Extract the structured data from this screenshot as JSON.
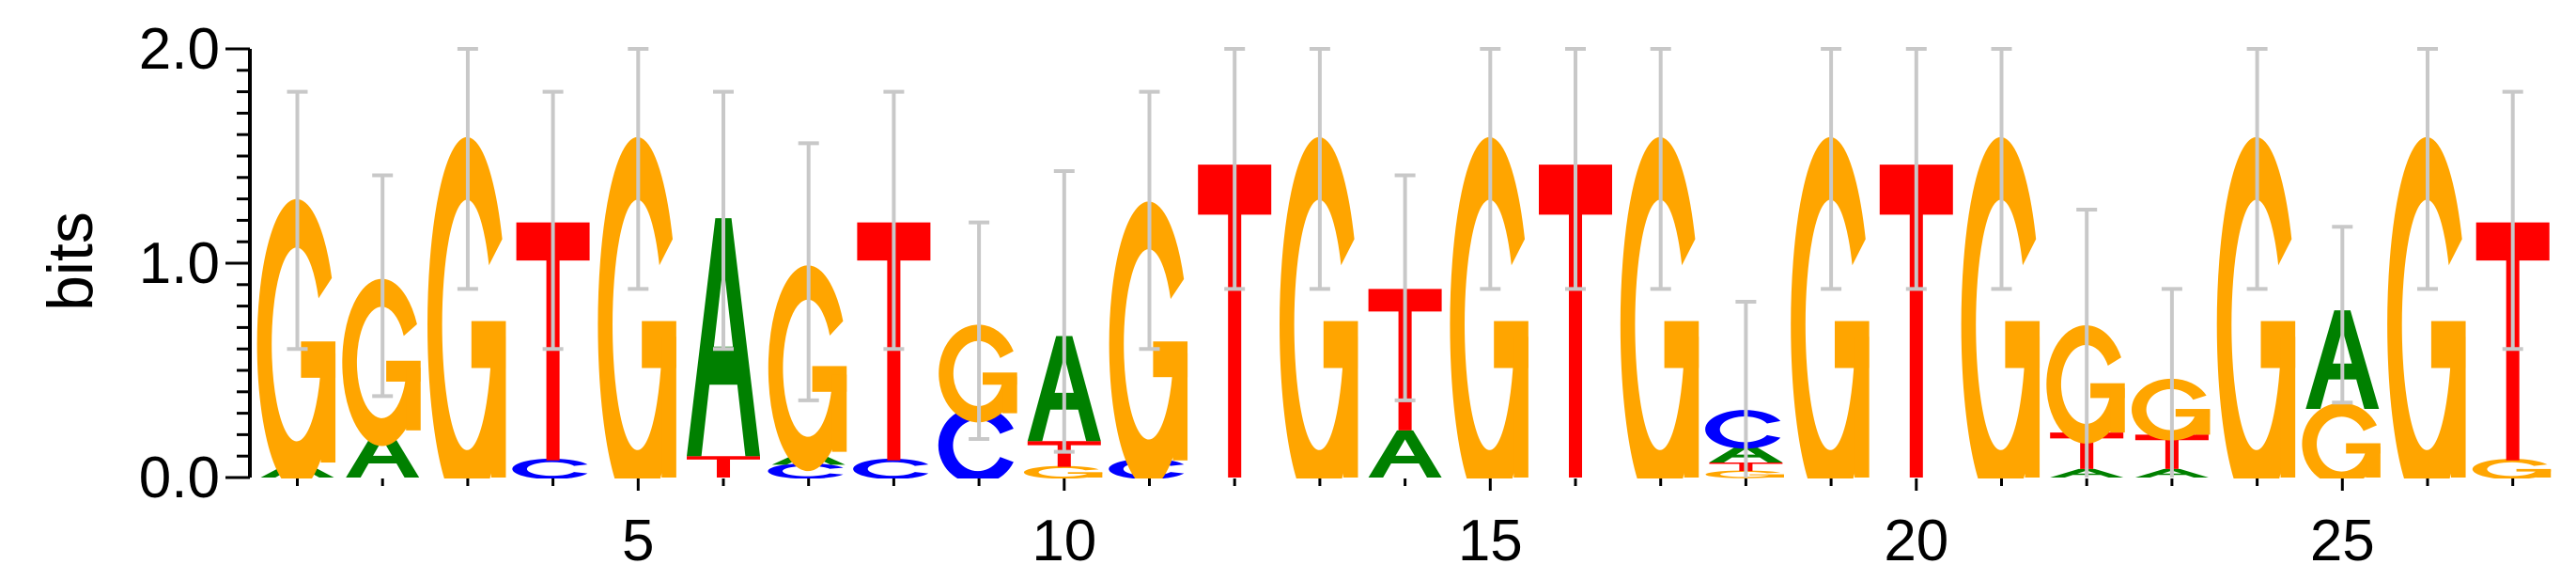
{
  "chart_data": {
    "type": "sequence-logo",
    "ylabel": "bits",
    "ylim": [
      0,
      2.0
    ],
    "y_ticks": [
      "0.0",
      "1.0",
      "2.0"
    ],
    "xlim": [
      0.5,
      27.5
    ],
    "x_ticks": [
      5,
      10,
      15,
      20,
      25
    ],
    "x_tick_labels": [
      "5",
      "10",
      "15",
      "20",
      "25"
    ],
    "colors": {
      "A": "#008000",
      "C": "#0000ff",
      "G": "#ffa500",
      "T": "#ff0000",
      "error_bar": "#c8c8c8"
    },
    "positions": [
      {
        "pos": 1,
        "letters": [
          [
            "A",
            0.07
          ],
          [
            "G",
            1.13
          ]
        ],
        "error": [
          0.6,
          1.8
        ]
      },
      {
        "pos": 2,
        "letters": [
          [
            "A",
            0.22
          ],
          [
            "G",
            0.65
          ]
        ],
        "error": [
          0.38,
          1.41
        ]
      },
      {
        "pos": 3,
        "letters": [
          [
            "G",
            1.46
          ]
        ],
        "error": [
          0.88,
          2.0
        ]
      },
      {
        "pos": 4,
        "letters": [
          [
            "C",
            0.08
          ],
          [
            "T",
            1.11
          ]
        ],
        "error": [
          0.6,
          1.8
        ]
      },
      {
        "pos": 5,
        "letters": [
          [
            "G",
            1.46
          ]
        ],
        "error": [
          0.88,
          2.0
        ]
      },
      {
        "pos": 6,
        "letters": [
          [
            "T",
            0.1
          ],
          [
            "A",
            1.11
          ]
        ],
        "error": [
          0.6,
          1.8
        ]
      },
      {
        "pos": 7,
        "letters": [
          [
            "C",
            0.06
          ],
          [
            "A",
            0.06
          ],
          [
            "G",
            0.8
          ]
        ],
        "error": [
          0.36,
          1.56
        ]
      },
      {
        "pos": 8,
        "letters": [
          [
            "C",
            0.08
          ],
          [
            "T",
            1.11
          ]
        ],
        "error": [
          0.6,
          1.8
        ]
      },
      {
        "pos": 9,
        "letters": [
          [
            "C",
            0.3
          ],
          [
            "G",
            0.38
          ]
        ],
        "error": [
          0.18,
          1.19
        ]
      },
      {
        "pos": 10,
        "letters": [
          [
            "G",
            0.05
          ],
          [
            "T",
            0.12
          ],
          [
            "A",
            0.49
          ]
        ],
        "error": [
          0.12,
          1.43
        ]
      },
      {
        "pos": 11,
        "letters": [
          [
            "C",
            0.08
          ],
          [
            "G",
            1.11
          ]
        ],
        "error": [
          0.6,
          1.8
        ]
      },
      {
        "pos": 12,
        "letters": [
          [
            "T",
            1.46
          ]
        ],
        "error": [
          0.88,
          2.0
        ]
      },
      {
        "pos": 13,
        "letters": [
          [
            "G",
            1.46
          ]
        ],
        "error": [
          0.88,
          2.0
        ]
      },
      {
        "pos": 14,
        "letters": [
          [
            "A",
            0.22
          ],
          [
            "T",
            0.66
          ]
        ],
        "error": [
          0.36,
          1.41
        ]
      },
      {
        "pos": 15,
        "letters": [
          [
            "G",
            1.46
          ]
        ],
        "error": [
          0.88,
          2.0
        ]
      },
      {
        "pos": 16,
        "letters": [
          [
            "T",
            1.46
          ]
        ],
        "error": [
          0.88,
          2.0
        ]
      },
      {
        "pos": 17,
        "letters": [
          [
            "G",
            1.46
          ]
        ],
        "error": [
          0.88,
          2.0
        ]
      },
      {
        "pos": 18,
        "letters": [
          [
            "G",
            0.03
          ],
          [
            "T",
            0.04
          ],
          [
            "A",
            0.08
          ],
          [
            "C",
            0.15
          ]
        ],
        "error": [
          0.0,
          0.82
        ]
      },
      {
        "pos": 19,
        "letters": [
          [
            "G",
            1.46
          ]
        ],
        "error": [
          0.88,
          2.0
        ]
      },
      {
        "pos": 20,
        "letters": [
          [
            "T",
            1.46
          ]
        ],
        "error": [
          0.88,
          2.0
        ]
      },
      {
        "pos": 21,
        "letters": [
          [
            "G",
            1.46
          ]
        ],
        "error": [
          0.88,
          2.0
        ]
      },
      {
        "pos": 22,
        "letters": [
          [
            "A",
            0.04
          ],
          [
            "T",
            0.17
          ],
          [
            "G",
            0.46
          ]
        ],
        "error": [
          0.0,
          1.25
        ]
      },
      {
        "pos": 23,
        "letters": [
          [
            "A",
            0.04
          ],
          [
            "T",
            0.16
          ],
          [
            "G",
            0.24
          ]
        ],
        "error": [
          0.0,
          0.88
        ]
      },
      {
        "pos": 24,
        "letters": [
          [
            "G",
            1.46
          ]
        ],
        "error": [
          0.88,
          2.0
        ]
      },
      {
        "pos": 25,
        "letters": [
          [
            "G",
            0.32
          ],
          [
            "A",
            0.46
          ]
        ],
        "error": [
          0.35,
          1.17
        ]
      },
      {
        "pos": 26,
        "letters": [
          [
            "G",
            1.46
          ]
        ],
        "error": [
          0.88,
          2.0
        ]
      },
      {
        "pos": 27,
        "letters": [
          [
            "G",
            0.08
          ],
          [
            "T",
            1.11
          ]
        ],
        "error": [
          0.6,
          1.8
        ]
      }
    ]
  }
}
